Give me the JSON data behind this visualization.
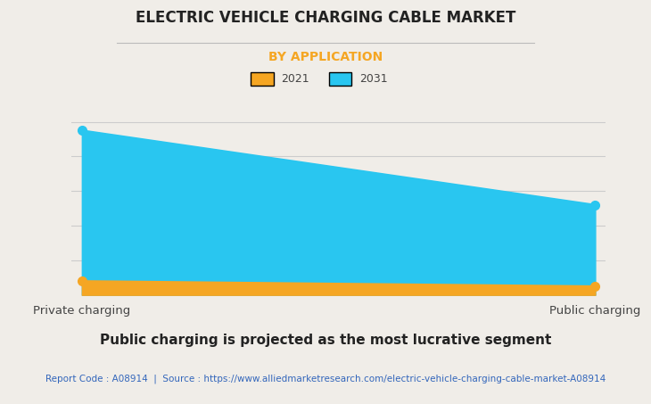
{
  "title": "ELECTRIC VEHICLE CHARGING CABLE MARKET",
  "subtitle": "BY APPLICATION",
  "subtitle_color": "#F5A623",
  "categories": [
    "Private charging",
    "Public charging"
  ],
  "series_2021": [
    0.08,
    0.05
  ],
  "series_2031": [
    0.95,
    0.52
  ],
  "color_2021": "#F5A623",
  "color_2031": "#29C6F0",
  "background_color": "#F0EDE8",
  "grid_color": "#CCCCCC",
  "ylim": [
    0,
    1.05
  ],
  "footer_text": "Public charging is projected as the most lucrative segment",
  "source_text": "Report Code : A08914  |  Source : https://www.alliedmarketresearch.com/electric-vehicle-charging-cable-market-A08914",
  "source_color": "#3366BB",
  "title_fontsize": 12,
  "subtitle_fontsize": 10,
  "footer_fontsize": 11,
  "source_fontsize": 7.5
}
